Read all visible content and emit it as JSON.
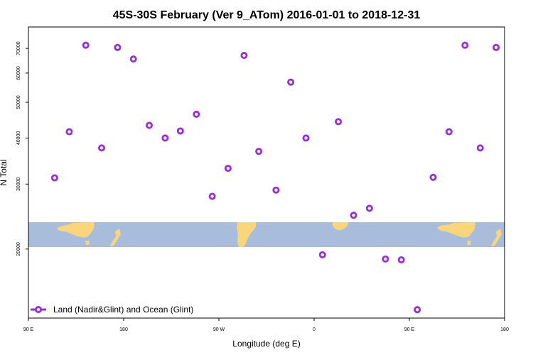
{
  "chart_data": {
    "type": "scatter",
    "title": "45S-30S February (Ver 9_ATom)   2016-01-01 to 2018-12-31",
    "xlabel": "Longitude (deg E)",
    "ylabel": "N Total",
    "x_ticks": [
      {
        "value": 90,
        "label": "90 E"
      },
      {
        "value": 180,
        "label": "180"
      },
      {
        "value": 270,
        "label": "90 W"
      },
      {
        "value": 360,
        "label": "0"
      },
      {
        "value": 450,
        "label": "90 E"
      },
      {
        "value": 540,
        "label": "180"
      }
    ],
    "y_ticks": [
      20000,
      30000,
      40000,
      50000,
      60000,
      70000
    ],
    "xlim": [
      90,
      540
    ],
    "ylim": [
      13000,
      80000
    ],
    "y_scale": "log",
    "grid": false,
    "legend_position": "bottom-left",
    "series": [
      {
        "name": "Land (Nadir&Glint) and Ocean (Glint)",
        "color": "#9a2be2",
        "marker": "open-circle",
        "points": [
          [
            114.8,
            31200
          ],
          [
            128.6,
            41600
          ],
          [
            144.2,
            71400
          ],
          [
            159.2,
            37600
          ],
          [
            174.2,
            70400
          ],
          [
            189.2,
            65500
          ],
          [
            204.2,
            43300
          ],
          [
            219.2,
            40000
          ],
          [
            233.6,
            41800
          ],
          [
            248.7,
            46400
          ],
          [
            263.7,
            27800
          ],
          [
            278.7,
            33100
          ],
          [
            293.8,
            67000
          ],
          [
            307.7,
            36800
          ],
          [
            324.0,
            28900
          ],
          [
            337.9,
            56700
          ],
          [
            352.3,
            40000
          ],
          [
            367.9,
            19300
          ],
          [
            382.9,
            44300
          ],
          [
            397.3,
            24700
          ],
          [
            412.3,
            25800
          ],
          [
            427.4,
            18800
          ],
          [
            442.4,
            18700
          ],
          [
            457.5,
            13700
          ],
          [
            472.5,
            31300
          ],
          [
            487.5,
            41600
          ],
          [
            502.6,
            71400
          ],
          [
            517.0,
            37600
          ],
          [
            532.0,
            70400
          ]
        ]
      }
    ]
  }
}
